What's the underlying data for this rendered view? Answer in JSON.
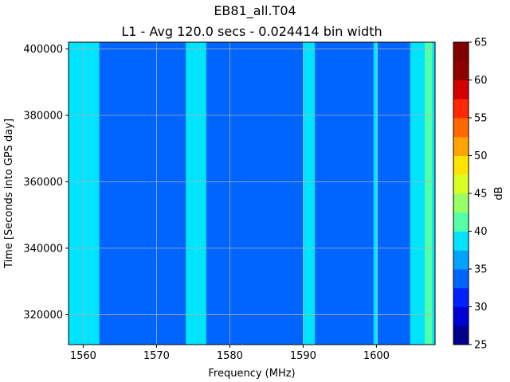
{
  "chart_data": {
    "type": "heatmap",
    "title": "EB81_all.T04",
    "subtitle": "L1 - Avg 120.0 secs - 0.024414 bin width",
    "xlabel": "Frequency (MHz)",
    "ylabel": "Time [Seconds into GPS day]",
    "xlim": [
      1558,
      1608
    ],
    "ylim": [
      311000,
      402000
    ],
    "x_ticks": [
      {
        "value": 1560,
        "label": "1560"
      },
      {
        "value": 1570,
        "label": "1570"
      },
      {
        "value": 1580,
        "label": "1580"
      },
      {
        "value": 1590,
        "label": "1590"
      },
      {
        "value": 1600,
        "label": "1600"
      }
    ],
    "y_ticks": [
      {
        "value": 320000,
        "label": "320000"
      },
      {
        "value": 340000,
        "label": "340000"
      },
      {
        "value": 360000,
        "label": "360000"
      },
      {
        "value": 380000,
        "label": "380000"
      },
      {
        "value": 400000,
        "label": "400000"
      }
    ],
    "grid": true,
    "base_level_db": 32.5,
    "bands": [
      {
        "x_start": 1558,
        "x_end": 1562.2,
        "level_db": 37.5
      },
      {
        "x_start": 1574.0,
        "x_end": 1576.8,
        "level_db": 37.5
      },
      {
        "x_start": 1590.0,
        "x_end": 1591.6,
        "level_db": 37.5
      },
      {
        "x_start": 1599.6,
        "x_end": 1600.2,
        "level_db": 37.5
      },
      {
        "x_start": 1604.6,
        "x_end": 1608,
        "level_db": 37.5
      },
      {
        "x_start": 1606.6,
        "x_end": 1607.6,
        "level_db": 40
      }
    ],
    "colorbar": {
      "label": "dB",
      "min": 25,
      "max": 65,
      "step": 2.5,
      "colors": [
        "#00008f",
        "#0000d4",
        "#0020ff",
        "#0064ff",
        "#00a4ff",
        "#00e4ff",
        "#54ffa8",
        "#98ff64",
        "#d8ff24",
        "#ffe400",
        "#ffa400",
        "#ff6800",
        "#ff2800",
        "#d40000",
        "#8f0000",
        "#800000"
      ],
      "ticks": [
        {
          "value": 25,
          "label": "25"
        },
        {
          "value": 30,
          "label": "30"
        },
        {
          "value": 35,
          "label": "35"
        },
        {
          "value": 40,
          "label": "40"
        },
        {
          "value": 45,
          "label": "45"
        },
        {
          "value": 50,
          "label": "50"
        },
        {
          "value": 55,
          "label": "55"
        },
        {
          "value": 60,
          "label": "60"
        },
        {
          "value": 65,
          "label": "65"
        }
      ]
    }
  }
}
